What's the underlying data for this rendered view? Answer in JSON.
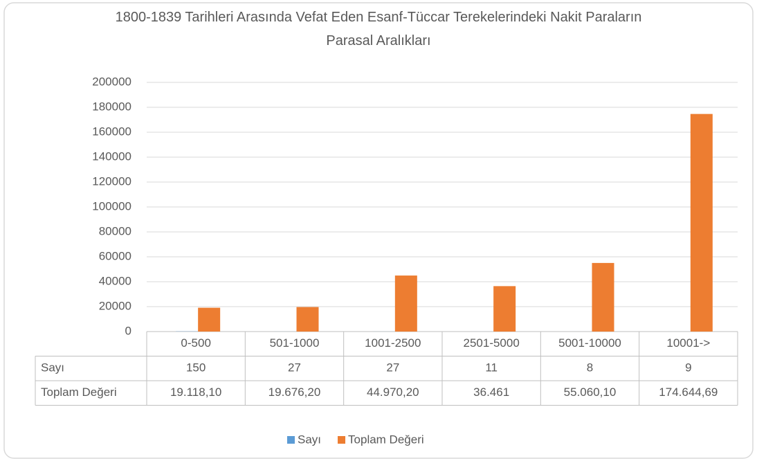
{
  "chart_data": {
    "type": "bar",
    "title": "1800-1839 Tarihleri Arasında Vefat Eden Esanf-Tüccar Terekelerindeki Nakit Paraların Parasal Aralıkları",
    "categories": [
      "0-500",
      "501-1000",
      "1001-2500",
      "2501-5000",
      "5001-10000",
      "10001->"
    ],
    "series": [
      {
        "name": "Sayı",
        "color": "#5b9bd5",
        "values": [
          150,
          27,
          27,
          11,
          8,
          9
        ]
      },
      {
        "name": "Toplam Değeri",
        "color": "#ed7d31",
        "values": [
          19118.1,
          19676.2,
          44970.2,
          36461,
          55060.1,
          174644.69
        ],
        "value_labels": [
          "19.118,10",
          "19.676,20",
          "44.970,20",
          "36.461",
          "55.060,10",
          "174.644,69"
        ]
      }
    ],
    "ylim": [
      0,
      200000
    ],
    "yticks": [
      0,
      20000,
      40000,
      60000,
      80000,
      100000,
      120000,
      140000,
      160000,
      180000,
      200000
    ],
    "grid": true,
    "legend": "bottom"
  }
}
